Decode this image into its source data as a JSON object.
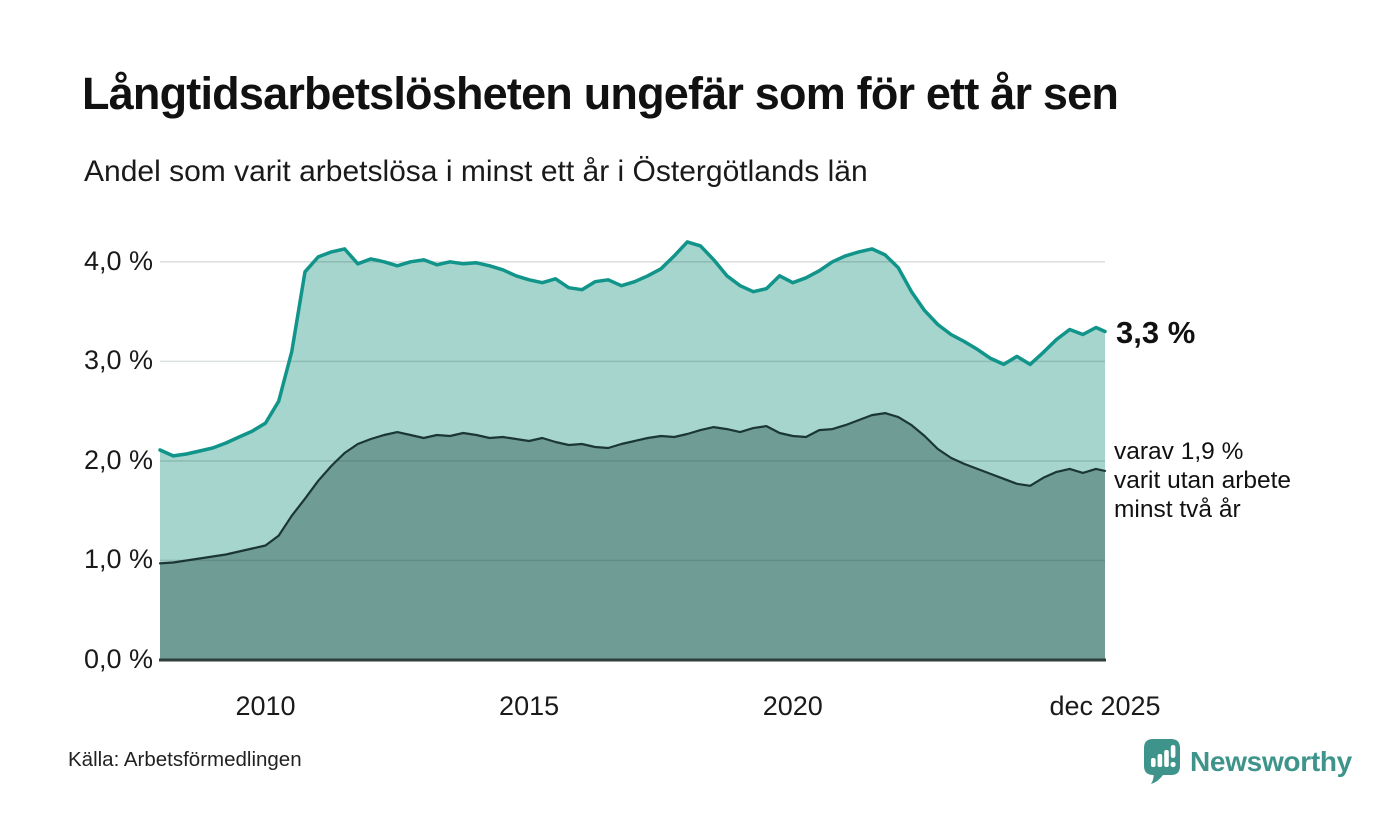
{
  "header": {
    "title": "Långtidsarbetslösheten ungefär som för ett år sen",
    "subtitle": "Andel som varit arbetslösa i minst ett år i Östergötlands län"
  },
  "annotations": {
    "latest_total": "3,3 %",
    "latest_two_years": [
      "varav 1,9 %",
      "varit utan arbete",
      "minst två år"
    ]
  },
  "footer": {
    "source": "Källa: Arbetsförmedlingen",
    "brand": "Newsworthy",
    "brand_icon": "newsworthy-chart-bubble-icon"
  },
  "colors": {
    "upper_line": "#11948a",
    "upper_fill": "#a5d5cd",
    "lower_line": "#1c3733",
    "lower_fill": "#6f9d96",
    "grid": "#d9d9d9",
    "grid_over_fill": "rgba(40,60,55,0.16)",
    "axis_line": "#2e3f3b",
    "text": "#1a1a1a",
    "brand_teal": "#3e948b"
  },
  "chart_data": {
    "type": "area",
    "title": "Långtidsarbetslösheten ungefär som för ett år sen",
    "subtitle": "Andel som varit arbetslösa i minst ett år i Östergötlands län",
    "xlabel": "",
    "ylabel": "",
    "x_unit": "decimal_year",
    "xlim": [
      2008.0,
      2025.92
    ],
    "ylim": [
      0,
      4.35
    ],
    "grid": "horizontal",
    "legend_position": "right-annotations",
    "x": [
      2008.0,
      2008.25,
      2008.5,
      2008.75,
      2009.0,
      2009.25,
      2009.5,
      2009.75,
      2010.0,
      2010.25,
      2010.5,
      2010.75,
      2011.0,
      2011.25,
      2011.5,
      2011.75,
      2012.0,
      2012.25,
      2012.5,
      2012.75,
      2013.0,
      2013.25,
      2013.5,
      2013.75,
      2014.0,
      2014.25,
      2014.5,
      2014.75,
      2015.0,
      2015.25,
      2015.5,
      2015.75,
      2016.0,
      2016.25,
      2016.5,
      2016.75,
      2017.0,
      2017.25,
      2017.5,
      2017.75,
      2018.0,
      2018.25,
      2018.5,
      2018.75,
      2019.0,
      2019.25,
      2019.5,
      2019.75,
      2020.0,
      2020.25,
      2020.5,
      2020.75,
      2021.0,
      2021.25,
      2021.5,
      2021.75,
      2022.0,
      2022.25,
      2022.5,
      2022.75,
      2023.0,
      2023.25,
      2023.5,
      2023.75,
      2024.0,
      2024.25,
      2024.5,
      2024.75,
      2025.0,
      2025.25,
      2025.5,
      2025.75,
      2025.92
    ],
    "series": [
      {
        "name": "Andel arbetslösa minst ett år",
        "line_color": "#11948a",
        "fill_color": "#a5d5cd",
        "line_width": 3.5,
        "end_value_label": "3,3 %",
        "values": [
          2.11,
          2.05,
          2.07,
          2.1,
          2.13,
          2.18,
          2.24,
          2.3,
          2.38,
          2.6,
          3.1,
          3.9,
          4.05,
          4.1,
          4.13,
          3.98,
          4.03,
          4.0,
          3.96,
          4.0,
          4.02,
          3.97,
          4.0,
          3.98,
          3.99,
          3.96,
          3.92,
          3.86,
          3.82,
          3.79,
          3.83,
          3.74,
          3.72,
          3.8,
          3.82,
          3.76,
          3.8,
          3.86,
          3.93,
          4.06,
          4.2,
          4.16,
          4.02,
          3.86,
          3.76,
          3.7,
          3.73,
          3.86,
          3.79,
          3.84,
          3.91,
          4.0,
          4.06,
          4.1,
          4.13,
          4.07,
          3.94,
          3.7,
          3.51,
          3.37,
          3.27,
          3.2,
          3.12,
          3.03,
          2.97,
          3.05,
          2.97,
          3.09,
          3.22,
          3.32,
          3.27,
          3.34,
          3.3
        ]
      },
      {
        "name": "varav utan arbete minst två år",
        "line_color": "#1c3733",
        "fill_color": "#6f9d96",
        "line_width": 2.2,
        "end_value_label": "1,9 %",
        "values": [
          0.97,
          0.98,
          1.0,
          1.02,
          1.04,
          1.06,
          1.09,
          1.12,
          1.15,
          1.25,
          1.45,
          1.62,
          1.8,
          1.95,
          2.08,
          2.17,
          2.22,
          2.26,
          2.29,
          2.26,
          2.23,
          2.26,
          2.25,
          2.28,
          2.26,
          2.23,
          2.24,
          2.22,
          2.2,
          2.23,
          2.19,
          2.16,
          2.17,
          2.14,
          2.13,
          2.17,
          2.2,
          2.23,
          2.25,
          2.24,
          2.27,
          2.31,
          2.34,
          2.32,
          2.29,
          2.33,
          2.35,
          2.28,
          2.25,
          2.24,
          2.31,
          2.32,
          2.36,
          2.41,
          2.46,
          2.48,
          2.44,
          2.36,
          2.25,
          2.12,
          2.03,
          1.97,
          1.92,
          1.87,
          1.82,
          1.77,
          1.75,
          1.83,
          1.89,
          1.92,
          1.88,
          1.92,
          1.9
        ]
      }
    ],
    "yticks": [
      {
        "value": 0,
        "label": "0,0 %"
      },
      {
        "value": 1,
        "label": "1,0 %"
      },
      {
        "value": 2,
        "label": "2,0 %"
      },
      {
        "value": 3,
        "label": "3,0 %"
      },
      {
        "value": 4,
        "label": "4,0 %"
      }
    ],
    "xticks": [
      {
        "value": 2010.0,
        "label": "2010"
      },
      {
        "value": 2015.0,
        "label": "2015"
      },
      {
        "value": 2020.0,
        "label": "2020"
      },
      {
        "value": 2025.92,
        "label": "dec 2025"
      }
    ]
  }
}
